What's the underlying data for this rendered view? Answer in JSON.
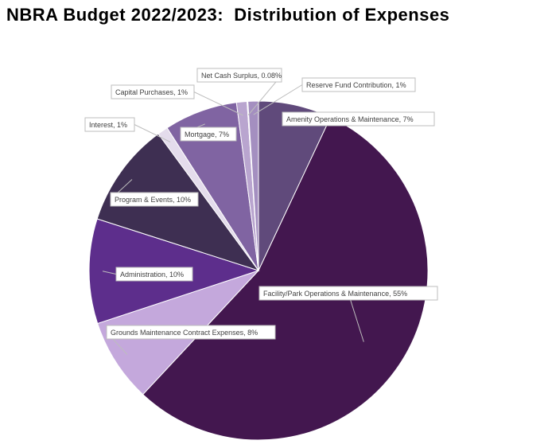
{
  "chart_data": {
    "type": "pie",
    "title": "NBRA Budget 2022/2023:  Distribution of Expenses",
    "slices": [
      {
        "label": "Amenity Operations & Maintenance, 7%",
        "name": "Amenity Operations & Maintenance",
        "value": 7,
        "color": "#604a7b"
      },
      {
        "label": "Facility/Park Operations & Maintenance, 55%",
        "name": "Facility/Park Operations & Maintenance",
        "value": 55,
        "color": "#43174f"
      },
      {
        "label": "Grounds Maintenance Contract Expenses, 8%",
        "name": "Grounds Maintenance Contract Expenses",
        "value": 8,
        "color": "#c4a8dc"
      },
      {
        "label": "Administration, 10%",
        "name": "Administration",
        "value": 10,
        "color": "#5d2e8c"
      },
      {
        "label": "Program & Events, 10%",
        "name": "Program & Events",
        "value": 10,
        "color": "#3e2f52"
      },
      {
        "label": "Interest, 1%",
        "name": "Interest",
        "value": 1,
        "color": "#e4dcec"
      },
      {
        "label": "Mortgage, 7%",
        "name": "Mortgage",
        "value": 7,
        "color": "#8064a2"
      },
      {
        "label": "Capital Purchases, 1%",
        "name": "Capital Purchases",
        "value": 1,
        "color": "#b9a5cf"
      },
      {
        "label": "Net Cash Surplus, 0.08%",
        "name": "Net Cash Surplus",
        "value": 0.08,
        "color": "#d9cce6"
      },
      {
        "label": "Reserve Fund Contribution, 1%",
        "name": "Reserve Fund Contribution",
        "value": 1,
        "color": "#a48fc0"
      }
    ]
  }
}
